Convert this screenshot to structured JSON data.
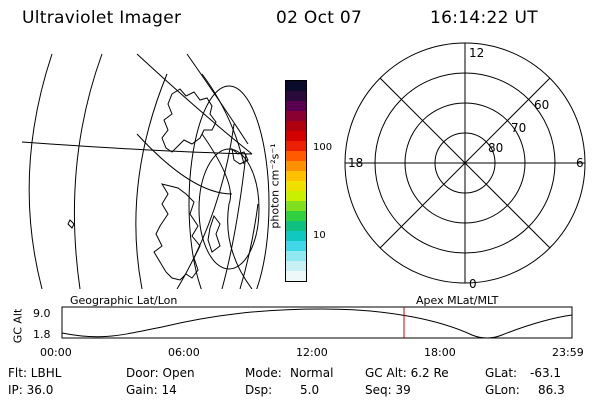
{
  "header": {
    "instrument": "Ultraviolet Imager",
    "date": "02 Oct 07",
    "time": "16:14:22 UT"
  },
  "colorbar": {
    "label": "photon cm⁻²s⁻¹",
    "ticks": [
      "100",
      "10"
    ],
    "colors": [
      "#0a0a2a",
      "#2a0a3a",
      "#5a0050",
      "#8a0030",
      "#b00010",
      "#d40000",
      "#ec2000",
      "#ff5a00",
      "#ff9000",
      "#ffc000",
      "#f0e000",
      "#c8f000",
      "#80e020",
      "#30d040",
      "#10c080",
      "#10c8c0",
      "#40d8e8",
      "#90e8f0",
      "#c8f0f4",
      "#eef8f8"
    ]
  },
  "left_panel": {
    "label": "Geographic Lat/Lon"
  },
  "right_panel": {
    "label": "Apex MLat/MLT",
    "mlt_labels": {
      "top": "12",
      "left": "18",
      "right": "6",
      "bottom": "0"
    },
    "mlat_labels": [
      "60",
      "70",
      "80"
    ]
  },
  "altitude_plot": {
    "ylabel": "GC Alt",
    "y_ticks": [
      "9.0",
      "1.8"
    ],
    "x_ticks": [
      "00:00",
      "06:00",
      "12:00",
      "18:00",
      "23:59"
    ],
    "marker_color": "#cc0000",
    "marker_time": "16:14:22"
  },
  "info": {
    "flt": "Flt: LBHL",
    "ip": "IP: 36.0",
    "door": "Door: Open",
    "gain": "Gain: 14",
    "mode_label": "Mode:",
    "mode_value": "Normal",
    "dsp_label": "Dsp:",
    "dsp_value": "5.0",
    "gcalt": "GC Alt: 6.2 Re",
    "seq": "Seq: 39",
    "glat_label": "GLat:",
    "glat_value": "-63.1",
    "glon_label": "GLon:",
    "glon_value": "86.3"
  }
}
